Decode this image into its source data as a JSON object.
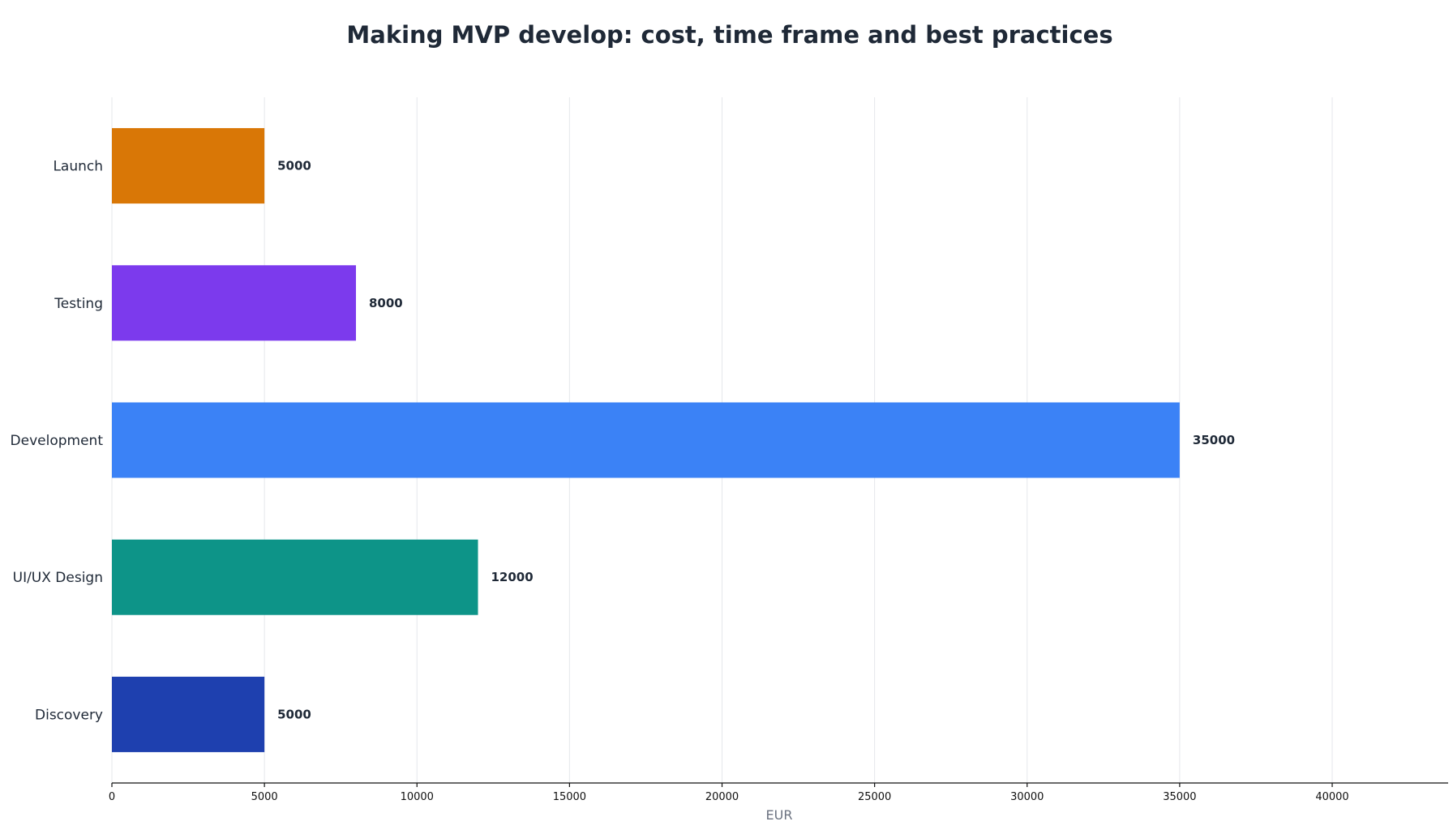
{
  "chart_data": {
    "type": "bar",
    "orientation": "horizontal",
    "title": "Making MVP develop: cost, time frame and best practices",
    "xlabel": "EUR",
    "ylabel": "",
    "categories": [
      "Discovery",
      "UI/UX Design",
      "Development",
      "Testing",
      "Launch"
    ],
    "values": [
      5000,
      12000,
      35000,
      8000,
      5000
    ],
    "colors": [
      "#1e40af",
      "#0d9488",
      "#3b82f6",
      "#7c3aed",
      "#d97706"
    ],
    "xlim": [
      0,
      43800
    ],
    "xticks": [
      0,
      5000,
      10000,
      15000,
      20000,
      25000,
      30000,
      35000,
      40000
    ],
    "xtick_labels": [
      "0",
      "5000",
      "10000",
      "15000",
      "20000",
      "25000",
      "30000",
      "35000",
      "40000"
    ],
    "value_labels": [
      "5000",
      "12000",
      "35000",
      "8000",
      "5000"
    ],
    "grid": true,
    "legend": "none"
  }
}
